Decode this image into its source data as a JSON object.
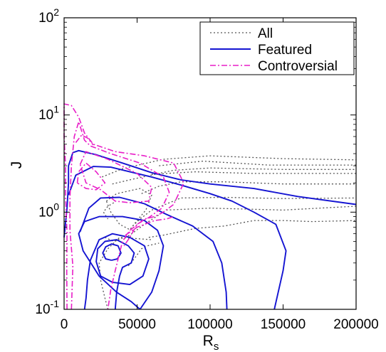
{
  "chart_data": {
    "type": "line",
    "subtype": "contour",
    "title": "",
    "xlabel": "R",
    "xlabel_subscript": "s",
    "ylabel": "J",
    "xlim": [
      0,
      200000
    ],
    "ylim": [
      0.1,
      100
    ],
    "yscale": "log",
    "grid": false,
    "legend_position": "top-right",
    "x_ticks": [
      {
        "value": 0,
        "label": "0"
      },
      {
        "value": 50000,
        "label": "50000"
      },
      {
        "value": 100000,
        "label": "100000"
      },
      {
        "value": 150000,
        "label": "150000"
      },
      {
        "value": 200000,
        "label": "200000"
      }
    ],
    "y_ticks": [
      {
        "value": 0.1,
        "base": "10",
        "exp": "-1"
      },
      {
        "value": 1,
        "base": "10",
        "exp": "0"
      },
      {
        "value": 10,
        "base": "10",
        "exp": "1"
      },
      {
        "value": 100,
        "base": "10",
        "exp": "2"
      }
    ],
    "series": [
      {
        "name": "All",
        "color": "#555555",
        "style": "dotted",
        "width": 1.3,
        "contours": [
          [
            [
              47000,
              0.72
            ],
            [
              52000,
              0.85
            ],
            [
              60000,
              1.05
            ],
            [
              80000,
              1.4
            ],
            [
              110000,
              1.42
            ],
            [
              150000,
              1.38
            ],
            [
              200000,
              1.4
            ]
          ],
          [
            [
              53000,
              1.55
            ],
            [
              65000,
              1.85
            ],
            [
              80000,
              2.05
            ],
            [
              110000,
              2.05
            ],
            [
              150000,
              1.95
            ],
            [
              200000,
              1.95
            ]
          ],
          [
            [
              60000,
              2.45
            ],
            [
              90000,
              2.6
            ],
            [
              130000,
              2.5
            ],
            [
              200000,
              2.5
            ]
          ],
          [
            [
              65000,
              3.0
            ],
            [
              95000,
              3.35
            ],
            [
              140000,
              3.05
            ],
            [
              200000,
              3.05
            ]
          ],
          [
            [
              33000,
              1.95
            ],
            [
              48000,
              2.2
            ],
            [
              75000,
              2.7
            ],
            [
              100000,
              2.85
            ],
            [
              150000,
              2.75
            ],
            [
              200000,
              2.75
            ]
          ],
          [
            [
              26000,
              2.3
            ],
            [
              40000,
              2.8
            ],
            [
              68000,
              3.5
            ],
            [
              100000,
              3.8
            ],
            [
              150000,
              3.55
            ],
            [
              200000,
              3.45
            ]
          ],
          [
            [
              29000,
              1.3
            ],
            [
              36000,
              1.55
            ],
            [
              52000,
              1.75
            ],
            [
              60000,
              1.5
            ],
            [
              56000,
              1.05
            ],
            [
              50000,
              0.82
            ],
            [
              45000,
              0.66
            ],
            [
              38000,
              0.75
            ],
            [
              32000,
              1.0
            ],
            [
              29000,
              1.3
            ]
          ],
          [
            [
              58000,
              0.55
            ],
            [
              68000,
              0.58
            ],
            [
              90000,
              0.68
            ],
            [
              110000,
              0.72
            ],
            [
              130000,
              0.82
            ],
            [
              150000,
              0.82
            ],
            [
              170000,
              0.8
            ],
            [
              200000,
              0.82
            ]
          ],
          [
            [
              28000,
              0.55
            ],
            [
              34000,
              0.5
            ],
            [
              45000,
              0.58
            ],
            [
              55000,
              0.75
            ],
            [
              70000,
              1.05
            ],
            [
              100000,
              1.1
            ],
            [
              150000,
              1.05
            ],
            [
              200000,
              1.15
            ]
          ],
          [
            [
              30000,
              0.1
            ],
            [
              28000,
              0.13
            ],
            [
              25000,
              0.2
            ],
            [
              24000,
              0.3
            ],
            [
              30000,
              0.42
            ],
            [
              38000,
              0.55
            ],
            [
              60000,
              0.52
            ]
          ],
          [
            [
              44000,
              0.28
            ],
            [
              48000,
              0.33
            ],
            [
              53000,
              0.42
            ],
            [
              57000,
              0.45
            ],
            [
              65000,
              0.48
            ]
          ],
          [
            [
              34000,
              1.25
            ],
            [
              30000,
              1.15
            ],
            [
              27000,
              1.0
            ],
            [
              30000,
              0.85
            ]
          ]
        ]
      },
      {
        "name": "Featured",
        "color": "#1414d2",
        "style": "solid",
        "width": 1.9,
        "contours": [
          [
            [
              0,
              0.55
            ],
            [
              2000,
              1.1
            ],
            [
              3000,
              2.0
            ],
            [
              3000,
              3.0
            ],
            [
              6000,
              4.1
            ],
            [
              10000,
              4.3
            ],
            [
              22000,
              3.9
            ],
            [
              40000,
              3.2
            ],
            [
              60000,
              2.55
            ],
            [
              80000,
              2.15
            ],
            [
              100000,
              1.95
            ],
            [
              130000,
              1.75
            ],
            [
              160000,
              1.45
            ],
            [
              200000,
              1.2
            ]
          ],
          [
            [
              3000,
              1.5
            ],
            [
              8000,
              2.4
            ],
            [
              20000,
              2.95
            ],
            [
              32000,
              2.9
            ],
            [
              45000,
              2.6
            ],
            [
              60000,
              2.3
            ],
            [
              80000,
              1.9
            ],
            [
              100000,
              1.55
            ],
            [
              115000,
              1.3
            ],
            [
              130000,
              1.0
            ],
            [
              145000,
              0.75
            ],
            [
              152000,
              0.4
            ],
            [
              150000,
              0.25
            ],
            [
              144000,
              0.1
            ]
          ],
          [
            [
              11000,
              0.63
            ],
            [
              17000,
              1.1
            ],
            [
              25000,
              1.4
            ],
            [
              38000,
              1.42
            ],
            [
              55000,
              1.22
            ],
            [
              70000,
              0.95
            ],
            [
              88000,
              0.72
            ],
            [
              102000,
              0.5
            ],
            [
              108000,
              0.3
            ],
            [
              111000,
              0.15
            ],
            [
              111500,
              0.1
            ]
          ],
          [
            [
              52000,
              0.1
            ],
            [
              46000,
              0.12
            ],
            [
              36000,
              0.15
            ],
            [
              24000,
              0.22
            ],
            [
              13000,
              0.4
            ],
            [
              10000,
              0.6
            ],
            [
              14000,
              0.8
            ],
            [
              24000,
              0.9
            ],
            [
              40000,
              0.9
            ],
            [
              55000,
              0.82
            ],
            [
              64000,
              0.65
            ],
            [
              68000,
              0.45
            ],
            [
              65000,
              0.25
            ],
            [
              60000,
              0.15
            ],
            [
              52000,
              0.1
            ]
          ],
          [
            [
              14000,
              0.1
            ],
            [
              15000,
              0.13
            ],
            [
              16000,
              0.2
            ],
            [
              18000,
              0.32
            ],
            [
              24000,
              0.52
            ],
            [
              33000,
              0.6
            ],
            [
              45000,
              0.55
            ],
            [
              55000,
              0.45
            ],
            [
              58000,
              0.33
            ],
            [
              54000,
              0.22
            ],
            [
              45000,
              0.18
            ],
            [
              33000,
              0.19
            ],
            [
              25000,
              0.22
            ],
            [
              22000,
              0.31
            ],
            [
              23000,
              0.42
            ],
            [
              28000,
              0.5
            ],
            [
              36000,
              0.52
            ],
            [
              44000,
              0.45
            ],
            [
              48000,
              0.38
            ],
            [
              46000,
              0.3
            ],
            [
              40000,
              0.27
            ],
            [
              38000,
              0.22
            ],
            [
              36000,
              0.15
            ],
            [
              35000,
              0.1
            ]
          ],
          [
            [
              32500,
              0.32
            ],
            [
              36500,
              0.33
            ],
            [
              39000,
              0.38
            ],
            [
              37000,
              0.45
            ],
            [
              32500,
              0.47
            ],
            [
              28500,
              0.44
            ],
            [
              26500,
              0.38
            ],
            [
              28500,
              0.33
            ],
            [
              32500,
              0.32
            ]
          ]
        ]
      },
      {
        "name": "Controversial",
        "color": "#e81ec8",
        "style": "dashdot",
        "width": 1.6,
        "contours": [
          [
            [
              2000,
              0.1
            ],
            [
              1800,
              0.25
            ],
            [
              2000,
              0.6
            ],
            [
              1000,
              1.5
            ],
            [
              1000,
              3.0
            ],
            [
              0,
              6.0
            ],
            [
              0,
              13.0
            ],
            [
              5000,
              12.5
            ],
            [
              10000,
              9.5
            ],
            [
              14000,
              6.5
            ],
            [
              20000,
              5.0
            ],
            [
              35000,
              4.2
            ],
            [
              55000,
              3.8
            ],
            [
              75000,
              3.2
            ],
            [
              82000,
              2.0
            ],
            [
              75000,
              1.2
            ],
            [
              68000,
              1.0
            ],
            [
              62000,
              0.9
            ],
            [
              55000,
              0.85
            ],
            [
              45000,
              0.65
            ],
            [
              40000,
              0.5
            ],
            [
              38000,
              0.38
            ],
            [
              35000,
              0.25
            ],
            [
              32000,
              0.16
            ],
            [
              30000,
              0.1
            ]
          ],
          [
            [
              5000,
              0.1
            ],
            [
              6000,
              0.28
            ],
            [
              4000,
              0.65
            ],
            [
              4000,
              1.4
            ],
            [
              5000,
              3.0
            ],
            [
              7000,
              6.0
            ],
            [
              10000,
              8.5
            ],
            [
              14000,
              5.5
            ],
            [
              18000,
              4.8
            ],
            [
              32000,
              4.0
            ],
            [
              52000,
              3.2
            ],
            [
              68000,
              2.3
            ],
            [
              72000,
              1.6
            ],
            [
              67000,
              1.1
            ],
            [
              58000,
              0.88
            ],
            [
              50000,
              0.75
            ],
            [
              45000,
              0.55
            ],
            [
              41000,
              0.45
            ]
          ],
          [
            [
              11000,
              3.1
            ],
            [
              15000,
              4.2
            ],
            [
              30000,
              3.5
            ],
            [
              50000,
              2.5
            ],
            [
              60000,
              1.8
            ],
            [
              58000,
              1.3
            ],
            [
              45000,
              1.25
            ],
            [
              35000,
              1.3
            ],
            [
              25000,
              1.7
            ],
            [
              15000,
              2.0
            ],
            [
              11000,
              3.1
            ]
          ],
          [
            [
              9000,
              2.0
            ],
            [
              10000,
              2.6
            ],
            [
              15000,
              3.2
            ],
            [
              22000,
              2.6
            ],
            [
              28000,
              2.0
            ],
            [
              22000,
              1.7
            ],
            [
              15000,
              1.75
            ],
            [
              9000,
              2.0
            ]
          ],
          [
            [
              8000,
              5.2
            ],
            [
              12000,
              6.2
            ],
            [
              16000,
              5.8
            ],
            [
              20000,
              4.9
            ]
          ],
          [
            [
              42000,
              0.58
            ],
            [
              50000,
              0.7
            ],
            [
              62000,
              0.82
            ],
            [
              70000,
              0.85
            ],
            [
              75000,
              0.9
            ]
          ]
        ]
      }
    ]
  }
}
